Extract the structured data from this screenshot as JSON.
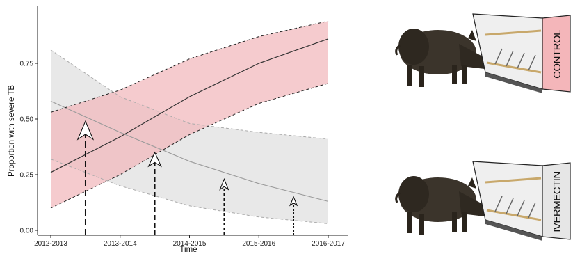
{
  "chart_data": {
    "type": "line",
    "xlabel": "Time",
    "ylabel": "Proportion with severe TB",
    "categories": [
      "2012-2013",
      "2013-2014",
      "2014-2015",
      "2015-2016",
      "2016-2017"
    ],
    "ylim": [
      0,
      0.95
    ],
    "yticks": [
      0.0,
      0.25,
      0.5,
      0.75
    ],
    "ytick_labels": [
      "0.00",
      "0.25",
      "0.50",
      "0.75"
    ],
    "grid": false,
    "series": [
      {
        "color": "#333333",
        "band_color": "#f2b9bd",
        "x": [
          0,
          1,
          2,
          3,
          4
        ],
        "values": [
          0.26,
          0.42,
          0.6,
          0.75,
          0.86
        ],
        "lower": [
          0.1,
          0.25,
          0.43,
          0.57,
          0.66
        ],
        "upper": [
          0.53,
          0.63,
          0.77,
          0.87,
          0.94
        ]
      },
      {
        "color": "#9a9a9a",
        "band_color": "#e4e4e4",
        "x": [
          0,
          1,
          2,
          3,
          4
        ],
        "values": [
          0.58,
          0.44,
          0.31,
          0.21,
          0.13
        ],
        "lower": [
          0.32,
          0.2,
          0.11,
          0.06,
          0.03
        ],
        "upper": [
          0.81,
          0.6,
          0.48,
          0.44,
          0.41
        ]
      }
    ],
    "arrows": [
      {
        "x": 0.5,
        "tip": 0.49
      },
      {
        "x": 1.5,
        "tip": 0.35
      },
      {
        "x": 2.5,
        "tip": 0.23
      },
      {
        "x": 3.5,
        "tip": 0.15
      }
    ]
  },
  "panels": {
    "control_label": "CONTROL",
    "ivermectin_label": "IVERMECTIN",
    "control_color": "#f4b6ba",
    "ivermectin_color": "#e6e6e6"
  }
}
